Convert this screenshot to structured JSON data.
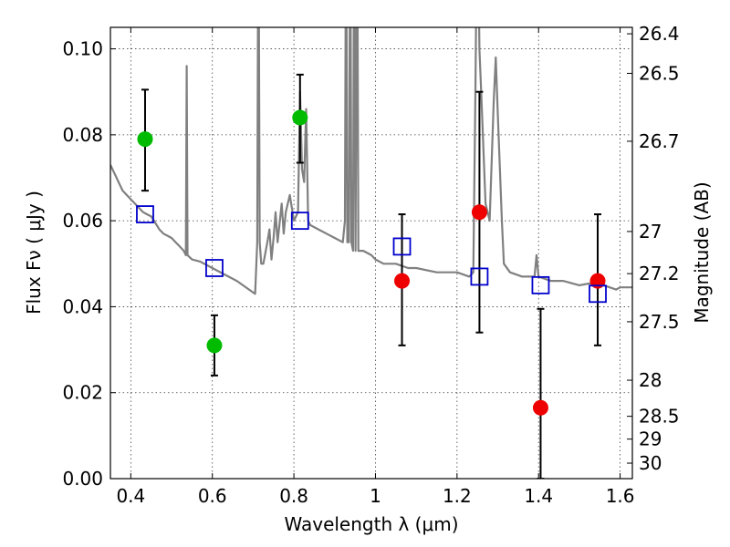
{
  "chart_data": {
    "type": "scatter",
    "title": "",
    "xlabel": "Wavelength  λ (μm)",
    "ylabel": "Flux  Fν  ( μJy )",
    "ylabel_right": "Magnitude (AB)",
    "xlim": [
      0.35,
      1.63
    ],
    "ylim": [
      0.0,
      0.105
    ],
    "grid": true,
    "x_ticks": [
      0.4,
      0.6,
      0.8,
      1.0,
      1.2,
      1.4,
      1.6
    ],
    "x_tick_labels": [
      "0.4",
      "0.6",
      "0.8",
      "1",
      "1.2",
      "1.4",
      "1.6"
    ],
    "y_ticks": [
      0.0,
      0.02,
      0.04,
      0.06,
      0.08,
      0.1
    ],
    "y_tick_labels": [
      "0.00",
      "0.02",
      "0.04",
      "0.06",
      "0.08",
      "0.10"
    ],
    "right_axis_ticks": [
      {
        "label": "26.4",
        "flux": 0.1035
      },
      {
        "label": "26.5",
        "flux": 0.0943
      },
      {
        "label": "26.7",
        "flux": 0.0785
      },
      {
        "label": "27",
        "flux": 0.0575
      },
      {
        "label": "27.2",
        "flux": 0.0477
      },
      {
        "label": "27.5",
        "flux": 0.0365
      },
      {
        "label": "28",
        "flux": 0.0229
      },
      {
        "label": "28.5",
        "flux": 0.0145
      },
      {
        "label": "29",
        "flux": 0.0092
      },
      {
        "label": "30",
        "flux": 0.0036
      }
    ],
    "series": [
      {
        "kind": "line",
        "color": "#808080",
        "points": [
          [
            0.35,
            0.073
          ],
          [
            0.36,
            0.071
          ],
          [
            0.37,
            0.069
          ],
          [
            0.38,
            0.067
          ],
          [
            0.39,
            0.066
          ],
          [
            0.4,
            0.065
          ],
          [
            0.41,
            0.064
          ],
          [
            0.42,
            0.063
          ],
          [
            0.43,
            0.062
          ],
          [
            0.44,
            0.0615
          ],
          [
            0.45,
            0.061
          ],
          [
            0.46,
            0.0595
          ],
          [
            0.47,
            0.058
          ],
          [
            0.48,
            0.057
          ],
          [
            0.49,
            0.0565
          ],
          [
            0.5,
            0.056
          ],
          [
            0.51,
            0.055
          ],
          [
            0.52,
            0.054
          ],
          [
            0.53,
            0.053
          ],
          [
            0.535,
            0.052
          ],
          [
            0.537,
            0.096
          ],
          [
            0.539,
            0.052
          ],
          [
            0.55,
            0.051
          ],
          [
            0.57,
            0.0505
          ],
          [
            0.6,
            0.049
          ],
          [
            0.63,
            0.0475
          ],
          [
            0.66,
            0.046
          ],
          [
            0.69,
            0.044
          ],
          [
            0.705,
            0.043
          ],
          [
            0.71,
            0.055
          ],
          [
            0.713,
            0.14
          ],
          [
            0.716,
            0.055
          ],
          [
            0.72,
            0.05
          ],
          [
            0.725,
            0.05
          ],
          [
            0.735,
            0.055
          ],
          [
            0.74,
            0.058
          ],
          [
            0.745,
            0.051
          ],
          [
            0.75,
            0.056
          ],
          [
            0.755,
            0.062
          ],
          [
            0.76,
            0.055
          ],
          [
            0.77,
            0.064
          ],
          [
            0.775,
            0.057
          ],
          [
            0.78,
            0.062
          ],
          [
            0.79,
            0.066
          ],
          [
            0.8,
            0.06
          ],
          [
            0.81,
            0.062
          ],
          [
            0.815,
            0.09
          ],
          [
            0.82,
            0.072
          ],
          [
            0.825,
            0.069
          ],
          [
            0.83,
            0.086
          ],
          [
            0.835,
            0.06
          ],
          [
            0.84,
            0.059
          ],
          [
            0.86,
            0.058
          ],
          [
            0.88,
            0.057
          ],
          [
            0.9,
            0.056
          ],
          [
            0.92,
            0.055
          ],
          [
            0.925,
            0.06
          ],
          [
            0.928,
            0.14
          ],
          [
            0.931,
            0.055
          ],
          [
            0.935,
            0.055
          ],
          [
            0.938,
            0.14
          ],
          [
            0.941,
            0.055
          ],
          [
            0.945,
            0.053
          ],
          [
            0.948,
            0.14
          ],
          [
            0.951,
            0.053
          ],
          [
            0.955,
            0.14
          ],
          [
            0.958,
            0.053
          ],
          [
            0.97,
            0.053
          ],
          [
            0.99,
            0.052
          ],
          [
            1.0,
            0.051
          ],
          [
            1.02,
            0.05
          ],
          [
            1.05,
            0.05
          ],
          [
            1.08,
            0.049
          ],
          [
            1.1,
            0.049
          ],
          [
            1.15,
            0.048
          ],
          [
            1.2,
            0.048
          ],
          [
            1.23,
            0.047
          ],
          [
            1.24,
            0.048
          ],
          [
            1.245,
            0.09
          ],
          [
            1.25,
            0.14
          ],
          [
            1.255,
            0.1
          ],
          [
            1.26,
            0.088
          ],
          [
            1.27,
            0.064
          ],
          [
            1.28,
            0.06
          ],
          [
            1.29,
            0.088
          ],
          [
            1.295,
            0.098
          ],
          [
            1.3,
            0.085
          ],
          [
            1.31,
            0.06
          ],
          [
            1.315,
            0.05
          ],
          [
            1.33,
            0.048
          ],
          [
            1.36,
            0.047
          ],
          [
            1.39,
            0.047
          ],
          [
            1.395,
            0.052
          ],
          [
            1.4,
            0.047
          ],
          [
            1.43,
            0.046
          ],
          [
            1.46,
            0.046
          ],
          [
            1.5,
            0.045
          ],
          [
            1.53,
            0.0455
          ],
          [
            1.56,
            0.045
          ],
          [
            1.59,
            0.044
          ],
          [
            1.6,
            0.0445
          ],
          [
            1.63,
            0.0445
          ]
        ]
      },
      {
        "kind": "markers",
        "marker": "filled-circle",
        "color": "#00bb00",
        "points": [
          {
            "x": 0.435,
            "y": 0.079,
            "yerr_low": 0.012,
            "yerr_high": 0.0115
          },
          {
            "x": 0.605,
            "y": 0.031,
            "yerr_low": 0.007,
            "yerr_high": 0.007
          },
          {
            "x": 0.815,
            "y": 0.084,
            "yerr_low": 0.0105,
            "yerr_high": 0.01
          }
        ]
      },
      {
        "kind": "markers",
        "marker": "filled-circle",
        "color": "#ee0000",
        "points": [
          {
            "x": 1.065,
            "y": 0.046,
            "yerr_low": 0.015,
            "yerr_high": 0.0155
          },
          {
            "x": 1.255,
            "y": 0.062,
            "yerr_low": 0.028,
            "yerr_high": 0.028
          },
          {
            "x": 1.405,
            "y": 0.0165,
            "yerr_low": 0.0165,
            "yerr_high": 0.023
          },
          {
            "x": 1.545,
            "y": 0.046,
            "yerr_low": 0.015,
            "yerr_high": 0.0155
          }
        ]
      },
      {
        "kind": "markers",
        "marker": "open-square",
        "color": "#0000cc",
        "points": [
          {
            "x": 0.435,
            "y": 0.0615
          },
          {
            "x": 0.605,
            "y": 0.049
          },
          {
            "x": 0.815,
            "y": 0.06
          },
          {
            "x": 1.065,
            "y": 0.054
          },
          {
            "x": 1.255,
            "y": 0.047
          },
          {
            "x": 1.405,
            "y": 0.045
          },
          {
            "x": 1.545,
            "y": 0.043
          }
        ]
      }
    ]
  }
}
